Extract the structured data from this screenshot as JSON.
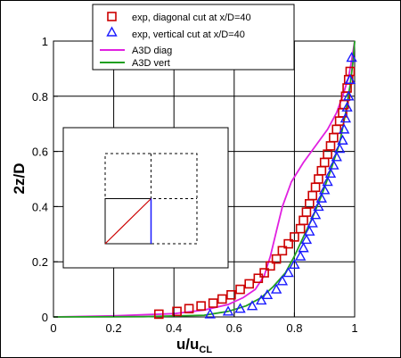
{
  "chart_data": {
    "type": "scatter",
    "xlabel_main": "u/u",
    "xlabel_sub": "CL",
    "ylabel": "2z/D",
    "xlim": [
      0,
      1
    ],
    "ylim": [
      0,
      1
    ],
    "x_ticks": [
      "0",
      "0.2",
      "0.4",
      "0.6",
      "0.8",
      "1"
    ],
    "y_ticks": [
      "0",
      "0.2",
      "0.4",
      "0.6",
      "0.8",
      "1"
    ],
    "grid": true,
    "legend_placement": "top-center",
    "colors": {
      "exp_diagonal": "#cc0000",
      "exp_vertical": "#1a1aff",
      "a3d_diag": "#e020e0",
      "a3d_vert": "#20a020"
    },
    "series": [
      {
        "name": "exp, diagonal cut at x/D=40",
        "marker": "square",
        "x": [
          0.35,
          0.41,
          0.45,
          0.49,
          0.53,
          0.56,
          0.59,
          0.62,
          0.65,
          0.68,
          0.7,
          0.72,
          0.74,
          0.76,
          0.78,
          0.8,
          0.82,
          0.83,
          0.84,
          0.85,
          0.86,
          0.87,
          0.88,
          0.89,
          0.9,
          0.91,
          0.92,
          0.93,
          0.94,
          0.95,
          0.96,
          0.965,
          0.97,
          0.975,
          0.98,
          0.985
        ],
        "y": [
          0.01,
          0.02,
          0.03,
          0.04,
          0.05,
          0.065,
          0.08,
          0.1,
          0.12,
          0.14,
          0.16,
          0.185,
          0.21,
          0.24,
          0.265,
          0.29,
          0.32,
          0.35,
          0.38,
          0.41,
          0.44,
          0.47,
          0.5,
          0.53,
          0.56,
          0.59,
          0.62,
          0.65,
          0.68,
          0.71,
          0.74,
          0.77,
          0.8,
          0.83,
          0.86,
          0.89
        ]
      },
      {
        "name": "exp, vertical cut at x/D=40",
        "marker": "triangle",
        "x": [
          0.52,
          0.58,
          0.62,
          0.66,
          0.69,
          0.71,
          0.74,
          0.76,
          0.78,
          0.8,
          0.82,
          0.83,
          0.84,
          0.85,
          0.86,
          0.87,
          0.88,
          0.89,
          0.9,
          0.91,
          0.92,
          0.93,
          0.94,
          0.95,
          0.96,
          0.965,
          0.97,
          0.975,
          0.98,
          0.985,
          0.99
        ],
        "y": [
          0.01,
          0.02,
          0.03,
          0.04,
          0.06,
          0.08,
          0.1,
          0.13,
          0.16,
          0.19,
          0.22,
          0.25,
          0.28,
          0.31,
          0.34,
          0.37,
          0.4,
          0.43,
          0.46,
          0.49,
          0.52,
          0.55,
          0.58,
          0.61,
          0.64,
          0.68,
          0.72,
          0.76,
          0.8,
          0.86,
          0.94
        ]
      },
      {
        "name": "A3D diag",
        "marker": "line",
        "x": [
          0.0,
          0.2,
          0.4,
          0.5,
          0.58,
          0.63,
          0.67,
          0.7,
          0.72,
          0.74,
          0.76,
          0.79,
          0.83,
          0.87,
          0.91,
          0.94,
          0.96,
          0.98,
          0.99,
          1.0
        ],
        "y": [
          0.0,
          0.004,
          0.012,
          0.025,
          0.045,
          0.07,
          0.1,
          0.15,
          0.22,
          0.31,
          0.4,
          0.49,
          0.56,
          0.62,
          0.68,
          0.74,
          0.8,
          0.87,
          0.93,
          1.0
        ]
      },
      {
        "name": "A3D vert",
        "marker": "line",
        "x": [
          0.0,
          0.3,
          0.5,
          0.58,
          0.64,
          0.69,
          0.73,
          0.77,
          0.8,
          0.83,
          0.86,
          0.89,
          0.92,
          0.95,
          0.97,
          0.985,
          0.995,
          1.0
        ],
        "y": [
          0.0,
          0.001,
          0.006,
          0.02,
          0.04,
          0.07,
          0.11,
          0.16,
          0.22,
          0.29,
          0.36,
          0.44,
          0.53,
          0.63,
          0.74,
          0.84,
          0.93,
          1.0
        ]
      }
    ]
  }
}
